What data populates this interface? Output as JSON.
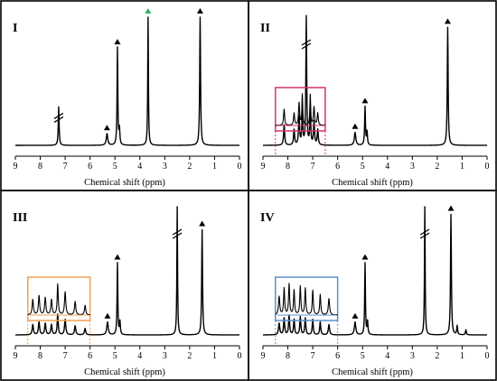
{
  "chart_data": [
    {
      "type": "line",
      "panel": "I",
      "xlabel": "Chemical shift (ppm)",
      "xlim": [
        9,
        0
      ],
      "xticks": [
        9,
        8,
        7,
        6,
        5,
        4,
        3,
        2,
        1,
        0
      ],
      "grid": false,
      "peaks": [
        {
          "ppm": 7.26,
          "height": 0.3,
          "width": 0.02,
          "broken": true
        },
        {
          "ppm": 5.32,
          "height": 0.09,
          "width": 0.035,
          "marker": "black-triangle"
        },
        {
          "ppm": 4.9,
          "height": 0.76,
          "width": 0.018,
          "marker": "black-triangle"
        },
        {
          "ppm": 4.82,
          "height": 0.12,
          "width": 0.02
        },
        {
          "ppm": 3.67,
          "height": 1.0,
          "width": 0.016,
          "marker": "green-triangle"
        },
        {
          "ppm": 1.58,
          "height": 1.0,
          "width": 0.02,
          "marker": "black-triangle"
        }
      ]
    },
    {
      "type": "line",
      "panel": "II",
      "xlabel": "Chemical shift (ppm)",
      "xlim": [
        9,
        0
      ],
      "xticks": [
        9,
        8,
        7,
        6,
        5,
        4,
        3,
        2,
        1,
        0
      ],
      "grid": false,
      "inset": {
        "range_ppm": [
          8.5,
          6.5
        ],
        "color": "#d6336c"
      },
      "peaks": [
        {
          "ppm": 8.15,
          "height": 0.16,
          "width": 0.025,
          "inset": true
        },
        {
          "ppm": 7.75,
          "height": 0.12,
          "width": 0.025,
          "inset": true
        },
        {
          "ppm": 7.55,
          "height": 0.22,
          "width": 0.025,
          "inset": true
        },
        {
          "ppm": 7.42,
          "height": 0.3,
          "width": 0.02,
          "inset": true
        },
        {
          "ppm": 7.26,
          "height": 1.0,
          "width": 0.02,
          "broken": true
        },
        {
          "ppm": 7.1,
          "height": 0.3,
          "width": 0.02,
          "inset": true
        },
        {
          "ppm": 6.95,
          "height": 0.18,
          "width": 0.025,
          "inset": true
        },
        {
          "ppm": 6.8,
          "height": 0.12,
          "width": 0.025,
          "inset": true
        },
        {
          "ppm": 5.3,
          "height": 0.1,
          "width": 0.035,
          "marker": "black-triangle"
        },
        {
          "ppm": 4.9,
          "height": 0.3,
          "width": 0.02,
          "marker": "black-triangle"
        },
        {
          "ppm": 4.82,
          "height": 0.1,
          "width": 0.02
        },
        {
          "ppm": 1.58,
          "height": 0.92,
          "width": 0.02,
          "marker": "black-triangle"
        }
      ]
    },
    {
      "type": "line",
      "panel": "III",
      "xlabel": "Chemical shift (ppm)",
      "xlim": [
        9,
        0
      ],
      "xticks": [
        9,
        8,
        7,
        6,
        5,
        4,
        3,
        2,
        1,
        0
      ],
      "grid": false,
      "inset": {
        "range_ppm": [
          8.5,
          6.0
        ],
        "color": "#f0a050"
      },
      "peaks": [
        {
          "ppm": 8.3,
          "height": 0.08,
          "width": 0.03,
          "inset": true
        },
        {
          "ppm": 8.05,
          "height": 0.1,
          "width": 0.03,
          "inset": true
        },
        {
          "ppm": 7.8,
          "height": 0.09,
          "width": 0.03,
          "inset": true
        },
        {
          "ppm": 7.55,
          "height": 0.08,
          "width": 0.03,
          "inset": true
        },
        {
          "ppm": 7.3,
          "height": 0.16,
          "width": 0.025,
          "inset": true
        },
        {
          "ppm": 7.0,
          "height": 0.12,
          "width": 0.03,
          "inset": true
        },
        {
          "ppm": 6.6,
          "height": 0.07,
          "width": 0.03,
          "inset": true
        },
        {
          "ppm": 6.2,
          "height": 0.05,
          "width": 0.03,
          "inset": true
        },
        {
          "ppm": 5.3,
          "height": 0.1,
          "width": 0.035,
          "marker": "black-triangle"
        },
        {
          "ppm": 4.9,
          "height": 0.56,
          "width": 0.018,
          "marker": "black-triangle"
        },
        {
          "ppm": 4.8,
          "height": 0.1,
          "width": 0.02
        },
        {
          "ppm": 2.5,
          "height": 1.0,
          "width": 0.016,
          "broken": true
        },
        {
          "ppm": 1.5,
          "height": 0.82,
          "width": 0.02,
          "marker": "black-triangle"
        }
      ]
    },
    {
      "type": "line",
      "panel": "IV",
      "xlabel": "Chemical shift (ppm)",
      "xlim": [
        9,
        0
      ],
      "xticks": [
        9,
        8,
        7,
        6,
        5,
        4,
        3,
        2,
        1,
        0
      ],
      "grid": false,
      "inset": {
        "range_ppm": [
          8.5,
          6.0
        ],
        "color": "#5b8fc9"
      },
      "peaks": [
        {
          "ppm": 8.35,
          "height": 0.09,
          "width": 0.03,
          "inset": true
        },
        {
          "ppm": 8.15,
          "height": 0.13,
          "width": 0.025,
          "inset": true
        },
        {
          "ppm": 7.95,
          "height": 0.15,
          "width": 0.025,
          "inset": true
        },
        {
          "ppm": 7.75,
          "height": 0.12,
          "width": 0.025,
          "inset": true
        },
        {
          "ppm": 7.5,
          "height": 0.14,
          "width": 0.025,
          "inset": true
        },
        {
          "ppm": 7.3,
          "height": 0.13,
          "width": 0.025,
          "inset": true
        },
        {
          "ppm": 7.0,
          "height": 0.12,
          "width": 0.025,
          "inset": true
        },
        {
          "ppm": 6.7,
          "height": 0.1,
          "width": 0.025,
          "inset": true
        },
        {
          "ppm": 6.35,
          "height": 0.08,
          "width": 0.03,
          "inset": true
        },
        {
          "ppm": 5.3,
          "height": 0.1,
          "width": 0.035,
          "marker": "black-triangle"
        },
        {
          "ppm": 4.9,
          "height": 0.56,
          "width": 0.018,
          "marker": "black-triangle"
        },
        {
          "ppm": 4.8,
          "height": 0.1,
          "width": 0.02
        },
        {
          "ppm": 2.5,
          "height": 1.0,
          "width": 0.016,
          "broken": true
        },
        {
          "ppm": 1.45,
          "height": 0.94,
          "width": 0.02,
          "marker": "black-triangle"
        },
        {
          "ppm": 1.2,
          "height": 0.07,
          "width": 0.02
        },
        {
          "ppm": 0.85,
          "height": 0.04,
          "width": 0.02
        }
      ]
    }
  ],
  "colors": {
    "green_marker": "#2db36b",
    "black_marker": "#000000"
  }
}
